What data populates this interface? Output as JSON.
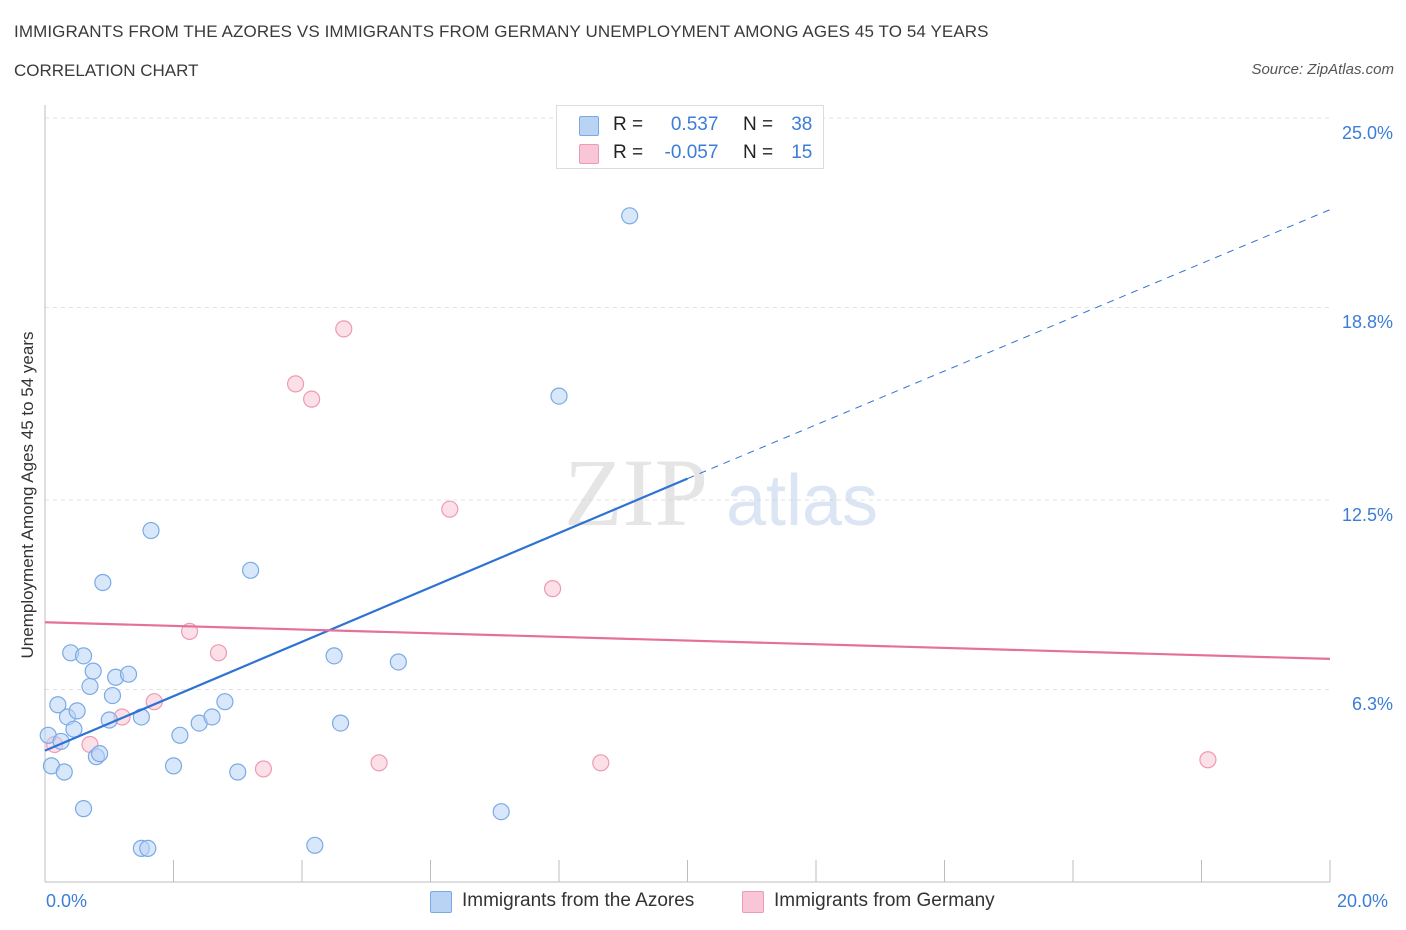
{
  "title": "IMMIGRANTS FROM THE AZORES VS IMMIGRANTS FROM GERMANY UNEMPLOYMENT AMONG AGES 45 TO 54 YEARS",
  "subtitle": "CORRELATION CHART",
  "source": "Source: ZipAtlas.com",
  "watermark": {
    "zip": "ZIP",
    "atlas": "atlas"
  },
  "legend": {
    "r_label": "R =",
    "n_label": "N =",
    "azores": {
      "r": "0.537",
      "n": "38"
    },
    "germany": {
      "r": "-0.057",
      "n": "15"
    }
  },
  "bottom_legend": {
    "azores": "Immigrants from the Azores",
    "germany": "Immigrants from Germany"
  },
  "colors": {
    "azores_fill": "#b9d3f5",
    "azores_stroke": "#7aaae6",
    "azores_line": "#2e72d2",
    "germany_fill": "#f8c6d6",
    "germany_stroke": "#ee9ab4",
    "germany_line": "#e5709a",
    "grid": "#e2e2e2",
    "axis_text": "#3b7dd8"
  },
  "chart_data": {
    "type": "scatter",
    "title": "IMMIGRANTS FROM THE AZORES VS IMMIGRANTS FROM GERMANY UNEMPLOYMENT AMONG AGES 45 TO 54 YEARS",
    "xlabel": "",
    "ylabel": "Unemployment Among Ages 45 to 54 years",
    "xlim": [
      0,
      20
    ],
    "ylim": [
      0,
      25
    ],
    "x_tick_labels": [
      "0.0%",
      "20.0%"
    ],
    "y_ticks": [
      6.3,
      12.5,
      18.8,
      25.0
    ],
    "y_tick_labels": [
      "6.3%",
      "12.5%",
      "18.8%",
      "25.0%"
    ],
    "grid": true,
    "legend_position": "top-center",
    "series": [
      {
        "name": "Immigrants from the Azores",
        "points": [
          [
            0.05,
            4.8
          ],
          [
            0.1,
            3.8
          ],
          [
            0.2,
            5.8
          ],
          [
            0.25,
            4.6
          ],
          [
            0.35,
            5.4
          ],
          [
            0.4,
            7.5
          ],
          [
            0.45,
            5.0
          ],
          [
            0.5,
            5.6
          ],
          [
            0.6,
            7.4
          ],
          [
            0.7,
            6.4
          ],
          [
            0.75,
            6.9
          ],
          [
            0.8,
            4.1
          ],
          [
            0.85,
            4.2
          ],
          [
            0.9,
            9.8
          ],
          [
            1.0,
            5.3
          ],
          [
            1.05,
            6.1
          ],
          [
            1.1,
            6.7
          ],
          [
            1.3,
            6.8
          ],
          [
            1.5,
            5.4
          ],
          [
            1.65,
            11.5
          ],
          [
            2.0,
            3.8
          ],
          [
            2.1,
            4.8
          ],
          [
            2.4,
            5.2
          ],
          [
            2.6,
            5.4
          ],
          [
            2.8,
            5.9
          ],
          [
            3.2,
            10.2
          ],
          [
            3.0,
            3.6
          ],
          [
            4.5,
            7.4
          ],
          [
            4.6,
            5.2
          ],
          [
            5.5,
            7.2
          ],
          [
            8.0,
            15.9
          ],
          [
            9.1,
            21.8
          ],
          [
            0.6,
            2.4
          ],
          [
            1.5,
            1.1
          ],
          [
            1.6,
            1.1
          ],
          [
            4.2,
            1.2
          ],
          [
            7.1,
            2.3
          ],
          [
            0.3,
            3.6
          ]
        ],
        "trend": {
          "x0": 0.0,
          "y0": 4.3,
          "x1": 10.0,
          "y1": 13.2,
          "dashed_to_x": 20.0,
          "dashed_to_y": 22.0
        }
      },
      {
        "name": "Immigrants from Germany",
        "points": [
          [
            0.15,
            4.5
          ],
          [
            0.7,
            4.5
          ],
          [
            1.2,
            5.4
          ],
          [
            1.7,
            5.9
          ],
          [
            2.25,
            8.2
          ],
          [
            2.7,
            7.5
          ],
          [
            3.4,
            3.7
          ],
          [
            3.9,
            16.3
          ],
          [
            4.15,
            15.8
          ],
          [
            4.65,
            18.1
          ],
          [
            5.2,
            3.9
          ],
          [
            6.3,
            12.2
          ],
          [
            7.9,
            9.6
          ],
          [
            8.65,
            3.9
          ],
          [
            18.1,
            4.0
          ]
        ],
        "trend": {
          "x0": 0.0,
          "y0": 8.5,
          "x1": 20.0,
          "y1": 7.3
        }
      }
    ]
  }
}
